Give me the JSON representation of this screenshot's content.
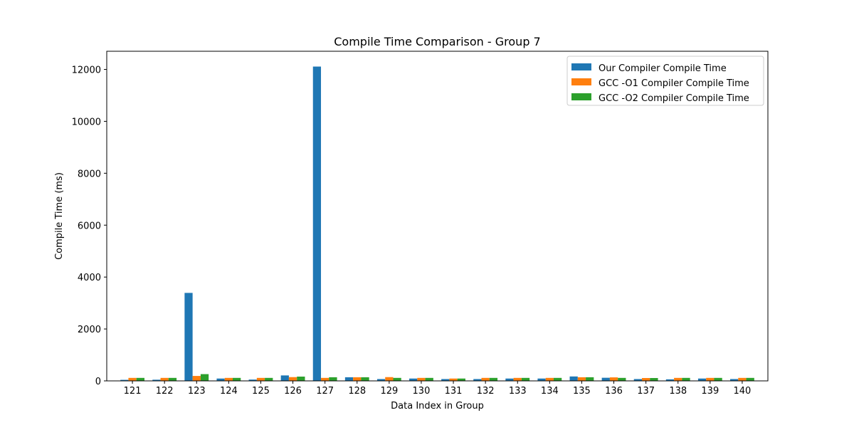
{
  "chart_data": {
    "type": "bar",
    "title": "Compile Time Comparison - Group 7",
    "xlabel": "Data Index in Group",
    "ylabel": "Compile Time (ms)",
    "ylim": [
      0,
      12700
    ],
    "yticks": [
      0,
      2000,
      4000,
      6000,
      8000,
      10000,
      12000
    ],
    "grid": false,
    "legend_position": "top-right",
    "categories": [
      "121",
      "122",
      "123",
      "124",
      "125",
      "126",
      "127",
      "128",
      "129",
      "130",
      "131",
      "132",
      "133",
      "134",
      "135",
      "136",
      "137",
      "138",
      "139",
      "140"
    ],
    "series": [
      {
        "name": "Our Compiler Compile Time",
        "color": "#1f77b4",
        "values": [
          40,
          45,
          3390,
          90,
          50,
          210,
          12110,
          140,
          70,
          90,
          70,
          70,
          90,
          90,
          170,
          120,
          70,
          60,
          90,
          70
        ]
      },
      {
        "name": "GCC -O1 Compiler Compile Time",
        "color": "#ff7f0e",
        "values": [
          115,
          115,
          190,
          115,
          115,
          145,
          115,
          140,
          145,
          115,
          90,
          115,
          115,
          115,
          140,
          135,
          110,
          115,
          115,
          115
        ]
      },
      {
        "name": "GCC -O2 Compiler Compile Time",
        "color": "#2ca02c",
        "values": [
          115,
          115,
          260,
          115,
          115,
          165,
          140,
          140,
          115,
          115,
          90,
          115,
          115,
          115,
          140,
          115,
          110,
          115,
          115,
          115
        ]
      }
    ]
  }
}
